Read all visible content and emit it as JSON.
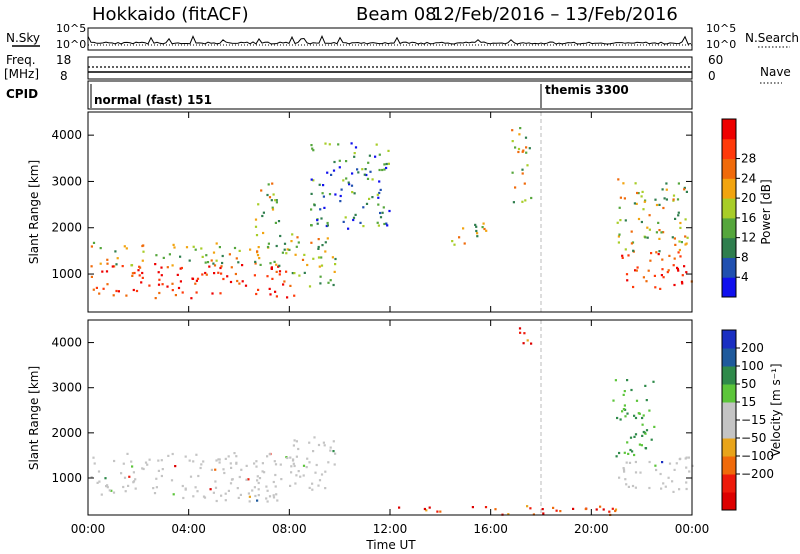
{
  "header": {
    "site": "Hokkaido (fitACF)",
    "beam": "Beam 08",
    "date_range": "12/Feb/2016 – 13/Feb/2016"
  },
  "top_strip": {
    "nsky_label": "N.Sky",
    "nsearch_label": "N.Search",
    "freq_label_1": "Freq.",
    "freq_label_2": "[MHz]",
    "nave_label": "Nave",
    "cpid_label": "CPID",
    "noise_ticks": [
      "10^5",
      "10^0"
    ],
    "freq_ticks": [
      "18",
      "8"
    ],
    "nave_ticks": [
      "60",
      "0"
    ],
    "cpid_modes": [
      {
        "name": "normal (fast)",
        "id": "151",
        "start_hour": 0
      },
      {
        "name": "themis",
        "id": "3300",
        "start_hour": 18
      }
    ]
  },
  "colors": {
    "power": [
      "#1010ee",
      "#2050b0",
      "#2f7e4e",
      "#55a63c",
      "#a8cd28",
      "#f2a40f",
      "#f06a0a",
      "#ff3a0a",
      "#ee0000"
    ],
    "velocity": [
      "#1a2fc2",
      "#1f5a9c",
      "#2f8a4a",
      "#5cc53a",
      "#c4c4c4",
      "#c4c4c4",
      "#e8a41a",
      "#f06a0a",
      "#ee1a0a",
      "#dd0000"
    ]
  },
  "chart_data": [
    {
      "type": "heatmap",
      "panel": "power",
      "ylabel": "Slant Range [km]",
      "yticks": [
        "1000",
        "2000",
        "3000",
        "4000"
      ],
      "ylim": [
        180,
        4500
      ],
      "xlabel": "Time UT",
      "xticks": [
        "00:00",
        "04:00",
        "08:00",
        "12:00",
        "16:00",
        "20:00",
        "00:00"
      ],
      "xlim_hours": [
        0,
        24
      ],
      "colorbar_label": "Power [dB]",
      "colorbar_ticks": [
        "4",
        "8",
        "12",
        "16",
        "20",
        "24",
        "28"
      ],
      "echo_regions": [
        {
          "t0": 0.1,
          "t1": 8.2,
          "r0": 500,
          "r1": 1250,
          "level": "high"
        },
        {
          "t0": 0.1,
          "t1": 8.2,
          "r0": 1200,
          "r1": 1700,
          "level": "medium"
        },
        {
          "t0": 6.5,
          "t1": 7.6,
          "r0": 1800,
          "r1": 3000,
          "level": "medium"
        },
        {
          "t0": 8.0,
          "t1": 9.8,
          "r0": 700,
          "r1": 1900,
          "level": "medium"
        },
        {
          "t0": 8.8,
          "t1": 12.0,
          "r0": 2000,
          "r1": 3900,
          "level": "low"
        },
        {
          "t0": 14.4,
          "t1": 15.8,
          "r0": 1600,
          "r1": 2200,
          "level": "medium"
        },
        {
          "t0": 16.8,
          "t1": 17.6,
          "r0": 2500,
          "r1": 4200,
          "level": "medium"
        },
        {
          "t0": 21.0,
          "t1": 24.0,
          "r0": 700,
          "r1": 1500,
          "level": "high"
        },
        {
          "t0": 21.0,
          "t1": 23.8,
          "r0": 1500,
          "r1": 3100,
          "level": "medium"
        }
      ]
    },
    {
      "type": "heatmap",
      "panel": "velocity",
      "ylabel": "Slant Range [km]",
      "yticks": [
        "1000",
        "2000",
        "3000",
        "4000"
      ],
      "ylim": [
        180,
        4500
      ],
      "xlabel": "Time UT",
      "xticks": [
        "00:00",
        "04:00",
        "08:00",
        "12:00",
        "16:00",
        "20:00",
        "00:00"
      ],
      "xlim_hours": [
        0,
        24
      ],
      "colorbar_label": "Velocity [m s⁻¹]",
      "colorbar_ticks": [
        "200",
        "100",
        "50",
        "15",
        "−15",
        "−50",
        "−100",
        "−200"
      ],
      "echo_regions": [
        {
          "t0": 0.1,
          "t1": 8.2,
          "r0": 500,
          "r1": 1600,
          "level": "ground"
        },
        {
          "t0": 8.0,
          "t1": 9.8,
          "r0": 700,
          "r1": 2000,
          "level": "ground"
        },
        {
          "t0": 21.0,
          "t1": 24.0,
          "r0": 700,
          "r1": 1500,
          "level": "ground"
        },
        {
          "t0": 20.8,
          "t1": 22.5,
          "r0": 1500,
          "r1": 3200,
          "level": "positive"
        },
        {
          "t0": 17.0,
          "t1": 17.7,
          "r0": 3900,
          "r1": 4400,
          "level": "negative"
        },
        {
          "t0": 12.0,
          "t1": 21.0,
          "r0": 200,
          "r1": 400,
          "level": "negative"
        }
      ]
    }
  ]
}
